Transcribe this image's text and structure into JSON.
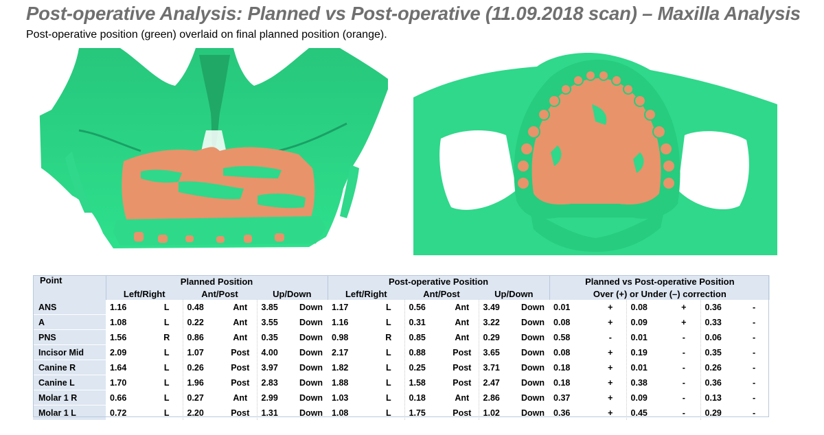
{
  "title": "Post-operative Analysis: Planned vs Post-operative (11.09.2018 scan) – Maxilla Analysis",
  "subtitle": "Post-operative position (green) overlaid on final planned position (orange).",
  "colors": {
    "post_op_green": "#2fd88a",
    "planned_orange": "#e8936a",
    "header_bg": "#dde6f1"
  },
  "table": {
    "point_header": "Point",
    "groups": [
      "Planned Position",
      "Post-operative Position",
      "Planned vs Post-operative Position"
    ],
    "group3_sub": "Over (+) or Under (–) correction",
    "subheaders": [
      "Left/Right",
      "Ant/Post",
      "Up/Down",
      "Left/Right",
      "Ant/Post",
      "Up/Down"
    ],
    "rows": [
      {
        "point": "ANS",
        "p": [
          "1.16",
          "L",
          "0.48",
          "Ant",
          "3.85",
          "Down"
        ],
        "o": [
          "1.17",
          "L",
          "0.56",
          "Ant",
          "3.49",
          "Down"
        ],
        "d": [
          "0.01",
          "+",
          "0.08",
          "+",
          "0.36",
          "-"
        ]
      },
      {
        "point": "A",
        "p": [
          "1.08",
          "L",
          "0.22",
          "Ant",
          "3.55",
          "Down"
        ],
        "o": [
          "1.16",
          "L",
          "0.31",
          "Ant",
          "3.22",
          "Down"
        ],
        "d": [
          "0.08",
          "+",
          "0.09",
          "+",
          "0.33",
          "-"
        ]
      },
      {
        "point": "PNS",
        "p": [
          "1.56",
          "R",
          "0.86",
          "Ant",
          "0.35",
          "Down"
        ],
        "o": [
          "0.98",
          "R",
          "0.85",
          "Ant",
          "0.29",
          "Down"
        ],
        "d": [
          "0.58",
          "-",
          "0.01",
          "-",
          "0.06",
          "-"
        ]
      },
      {
        "point": "Incisor Mid",
        "p": [
          "2.09",
          "L",
          "1.07",
          "Post",
          "4.00",
          "Down"
        ],
        "o": [
          "2.17",
          "L",
          "0.88",
          "Post",
          "3.65",
          "Down"
        ],
        "d": [
          "0.08",
          "+",
          "0.19",
          "-",
          "0.35",
          "-"
        ]
      },
      {
        "point": "Canine R",
        "p": [
          "1.64",
          "L",
          "0.26",
          "Post",
          "3.97",
          "Down"
        ],
        "o": [
          "1.82",
          "L",
          "0.25",
          "Post",
          "3.71",
          "Down"
        ],
        "d": [
          "0.18",
          "+",
          "0.01",
          "-",
          "0.26",
          "-"
        ]
      },
      {
        "point": "Canine L",
        "p": [
          "1.70",
          "L",
          "1.96",
          "Post",
          "2.83",
          "Down"
        ],
        "o": [
          "1.88",
          "L",
          "1.58",
          "Post",
          "2.47",
          "Down"
        ],
        "d": [
          "0.18",
          "+",
          "0.38",
          "-",
          "0.36",
          "-"
        ]
      },
      {
        "point": "Molar 1 R",
        "p": [
          "0.66",
          "L",
          "0.27",
          "Ant",
          "2.99",
          "Down"
        ],
        "o": [
          "1.03",
          "L",
          "0.18",
          "Ant",
          "2.86",
          "Down"
        ],
        "d": [
          "0.37",
          "+",
          "0.09",
          "-",
          "0.13",
          "-"
        ]
      },
      {
        "point": "Molar 1 L",
        "p": [
          "0.72",
          "L",
          "2.20",
          "Post",
          "1.31",
          "Down"
        ],
        "o": [
          "1.08",
          "L",
          "1.75",
          "Post",
          "1.02",
          "Down"
        ],
        "d": [
          "0.36",
          "+",
          "0.45",
          "-",
          "0.29",
          "-"
        ]
      }
    ]
  }
}
